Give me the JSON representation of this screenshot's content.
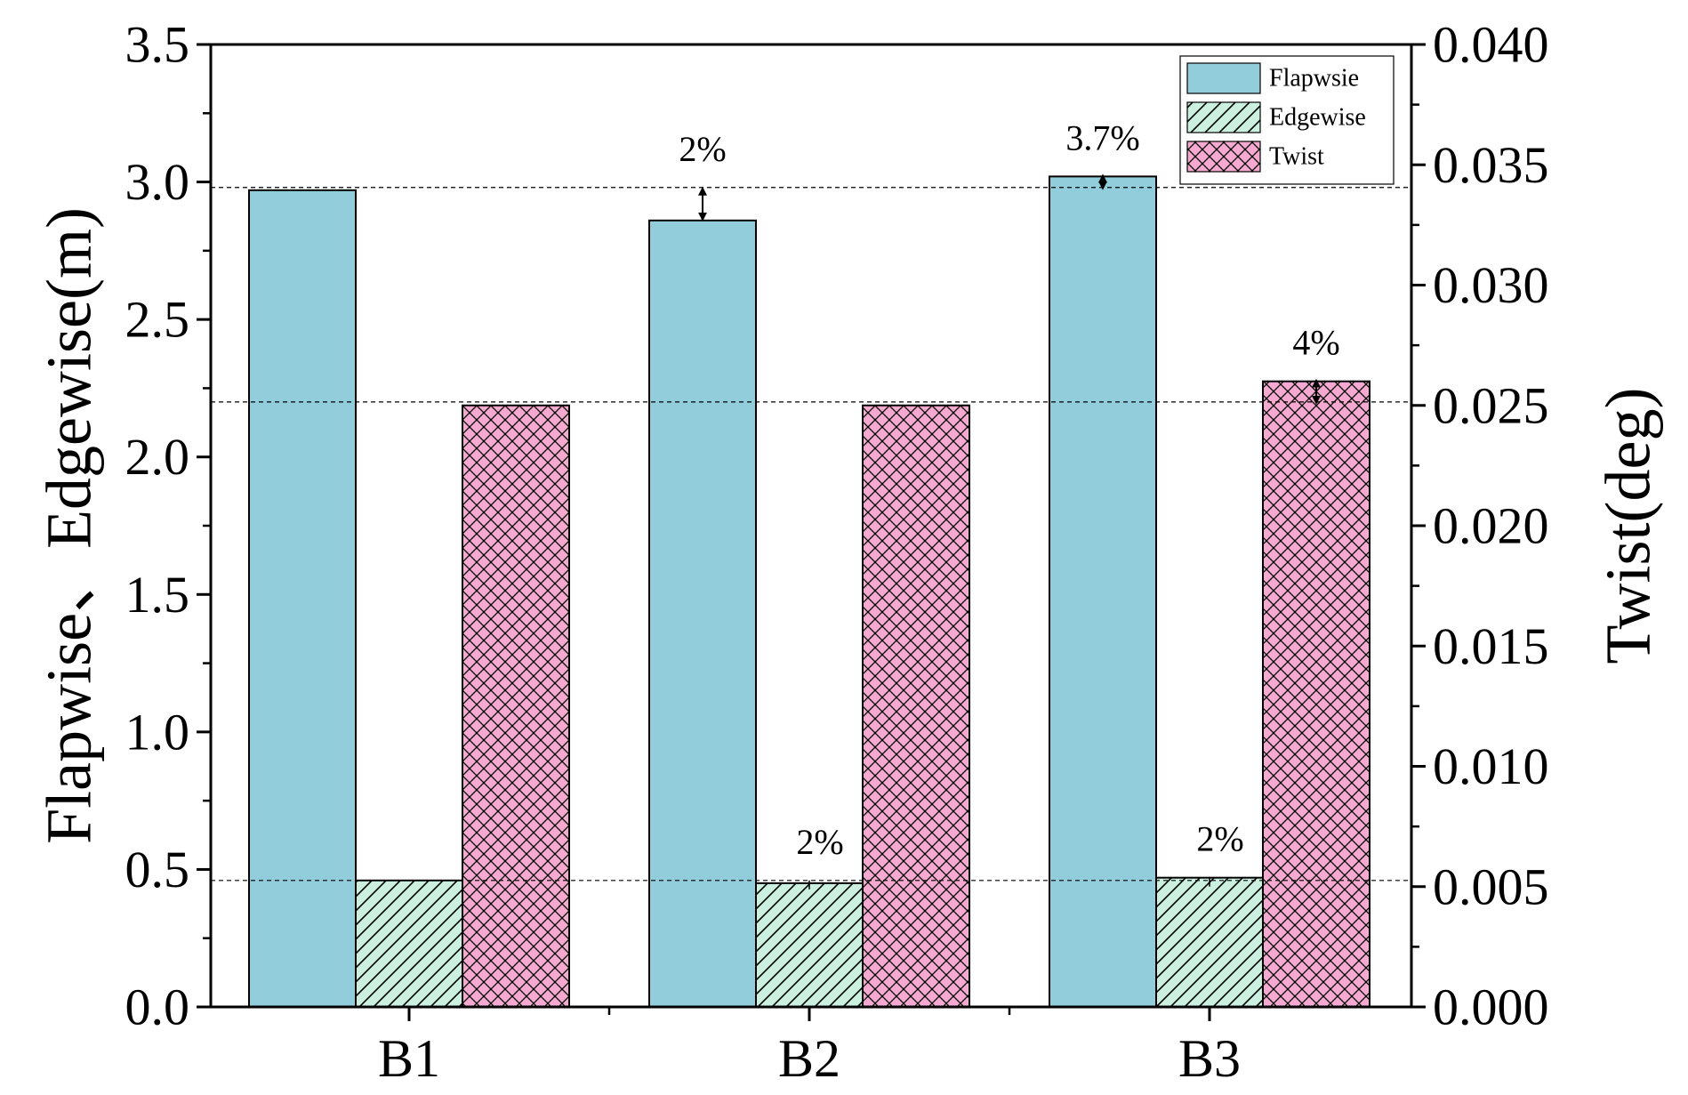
{
  "chart_data": {
    "type": "bar",
    "categories": [
      "B1",
      "B2",
      "B3"
    ],
    "y_left": {
      "label": "Flapwise、Edgewise(m)",
      "range": [
        0,
        3.5
      ],
      "ticks": [
        "0.0",
        "0.5",
        "1.0",
        "1.5",
        "2.0",
        "2.5",
        "3.0",
        "3.5"
      ]
    },
    "y_right": {
      "label": "Twist(deg)",
      "range": [
        0,
        0.04
      ],
      "ticks": [
        "0.000",
        "0.005",
        "0.010",
        "0.015",
        "0.020",
        "0.025",
        "0.030",
        "0.035",
        "0.040"
      ]
    },
    "series": [
      {
        "name": "Flapwsie",
        "axis": "left",
        "values": [
          2.97,
          2.86,
          3.02
        ],
        "color": "#92CDDC",
        "pattern": "solid"
      },
      {
        "name": "Edgewise",
        "axis": "left",
        "values": [
          0.46,
          0.45,
          0.47
        ],
        "color": "#CCF0E0",
        "pattern": "diagonal"
      },
      {
        "name": "Twist",
        "axis": "right",
        "values": [
          0.025,
          0.025,
          0.026
        ],
        "color": "#F5A9D0",
        "pattern": "crosshatch"
      }
    ],
    "reference_lines": [
      {
        "axis": "left",
        "value": 2.98
      },
      {
        "axis": "left",
        "value": 2.2
      },
      {
        "axis": "left",
        "value": 0.46
      }
    ],
    "annotations": [
      {
        "text": "2%",
        "category": "B2",
        "series": "Flapwsie"
      },
      {
        "text": "3.7%",
        "category": "B3",
        "series": "Flapwsie"
      },
      {
        "text": "2%",
        "category": "B2",
        "series": "Edgewise"
      },
      {
        "text": "2%",
        "category": "B3",
        "series": "Edgewise"
      },
      {
        "text": "4%",
        "category": "B3",
        "series": "Twist"
      }
    ],
    "legend": {
      "position": "top-right",
      "entries": [
        "Flapwsie",
        "Edgewise",
        "Twist"
      ]
    }
  }
}
